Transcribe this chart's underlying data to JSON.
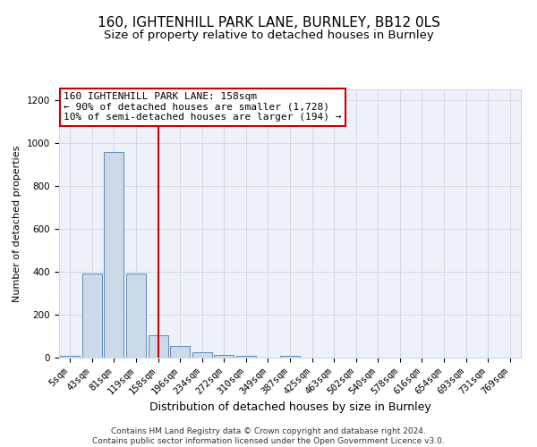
{
  "title_line1": "160, IGHTENHILL PARK LANE, BURNLEY, BB12 0LS",
  "title_line2": "Size of property relative to detached houses in Burnley",
  "xlabel": "Distribution of detached houses by size in Burnley",
  "ylabel": "Number of detached properties",
  "categories": [
    "5sqm",
    "43sqm",
    "81sqm",
    "119sqm",
    "158sqm",
    "196sqm",
    "234sqm",
    "272sqm",
    "310sqm",
    "349sqm",
    "387sqm",
    "425sqm",
    "463sqm",
    "502sqm",
    "540sqm",
    "578sqm",
    "616sqm",
    "654sqm",
    "693sqm",
    "731sqm",
    "769sqm"
  ],
  "values": [
    10,
    390,
    960,
    390,
    105,
    55,
    25,
    12,
    8,
    0,
    8,
    0,
    0,
    0,
    0,
    0,
    0,
    0,
    0,
    0,
    0
  ],
  "bar_color": "#ccd9e8",
  "bar_edge_color": "#5b8db8",
  "vline_x_index": 4,
  "vline_color": "#cc0000",
  "annotation_text": "160 IGHTENHILL PARK LANE: 158sqm\n← 90% of detached houses are smaller (1,728)\n10% of semi-detached houses are larger (194) →",
  "annotation_box_color": "#ffffff",
  "annotation_box_edge_color": "#cc0000",
  "ylim": [
    0,
    1250
  ],
  "yticks": [
    0,
    200,
    400,
    600,
    800,
    1000,
    1200
  ],
  "grid_color": "#d0d8e8",
  "background_color": "#eef2f8",
  "footer_text": "Contains HM Land Registry data © Crown copyright and database right 2024.\nContains public sector information licensed under the Open Government Licence v3.0.",
  "title1_fontsize": 11,
  "title2_fontsize": 9.5,
  "xlabel_fontsize": 9,
  "ylabel_fontsize": 8,
  "tick_fontsize": 7.5,
  "annotation_fontsize": 8,
  "footer_fontsize": 6.5
}
